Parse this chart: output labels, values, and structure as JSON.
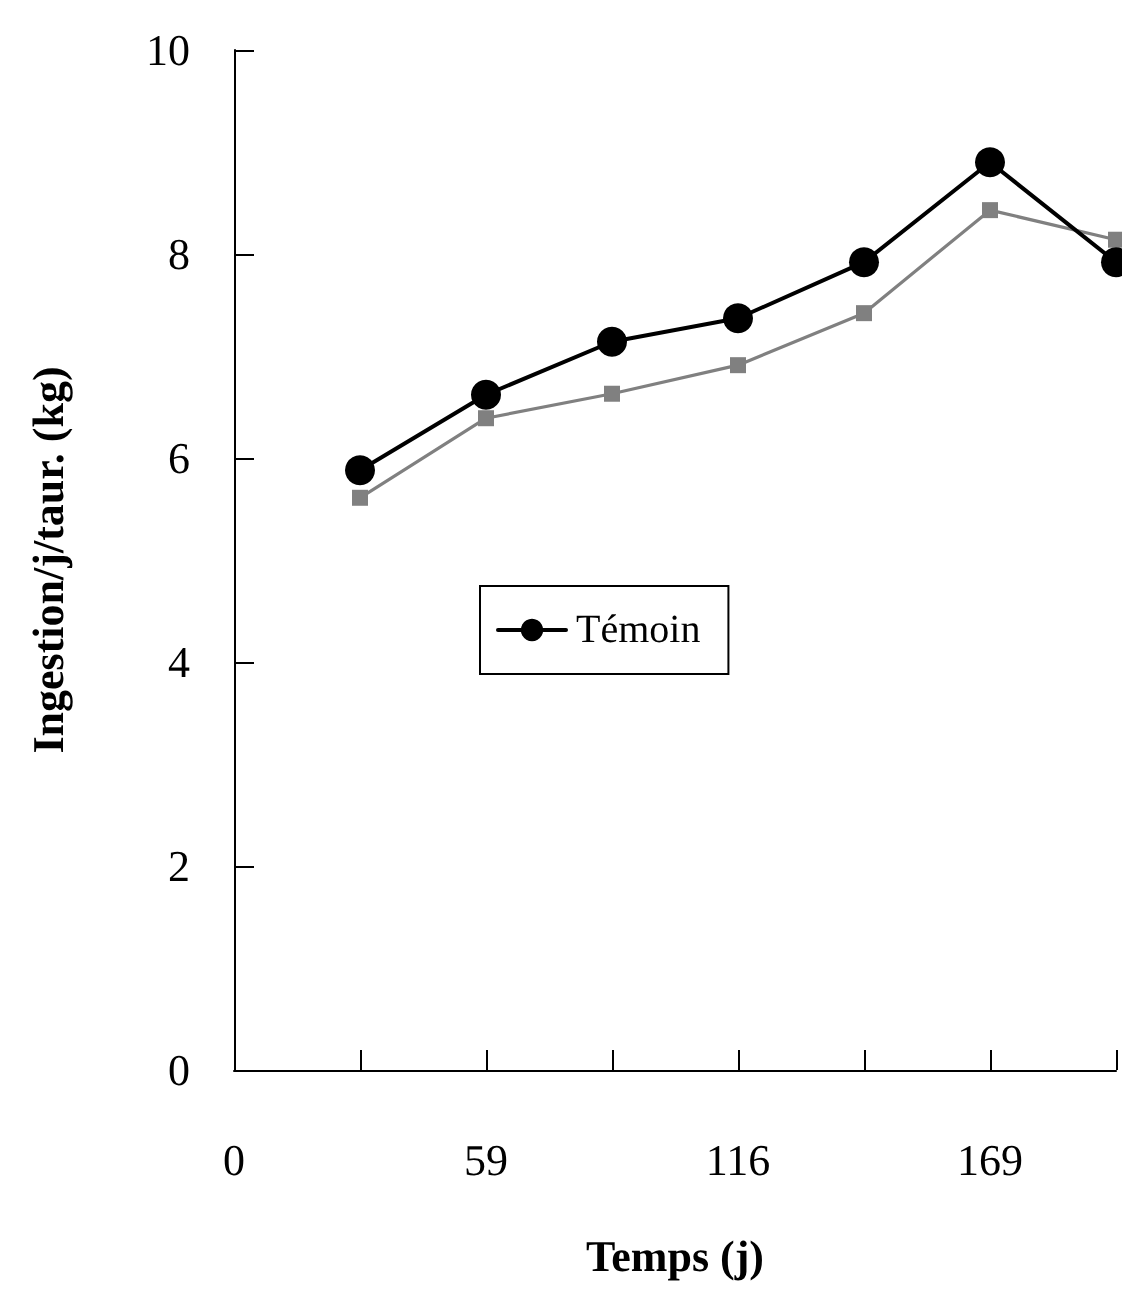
{
  "chart_data": {
    "type": "line",
    "xlabel": "Temps (j)",
    "ylabel": "Ingestion/j/taur. (kg)",
    "categories": [
      "0",
      null,
      "59",
      null,
      "116",
      null,
      "169",
      null
    ],
    "series": [
      {
        "name": "Témoin",
        "color": "#000000",
        "marker": "circle",
        "values": [
          null,
          5.88,
          6.62,
          7.14,
          7.37,
          7.92,
          8.9,
          7.92
        ]
      },
      {
        "color": "#808080",
        "marker": "square",
        "values": [
          null,
          5.61,
          6.39,
          6.63,
          6.91,
          7.42,
          8.43,
          8.14
        ]
      }
    ],
    "ylim": [
      0,
      10
    ],
    "yticks": [
      0,
      2,
      4,
      6,
      8,
      10
    ],
    "grid": false,
    "legend": "center"
  }
}
